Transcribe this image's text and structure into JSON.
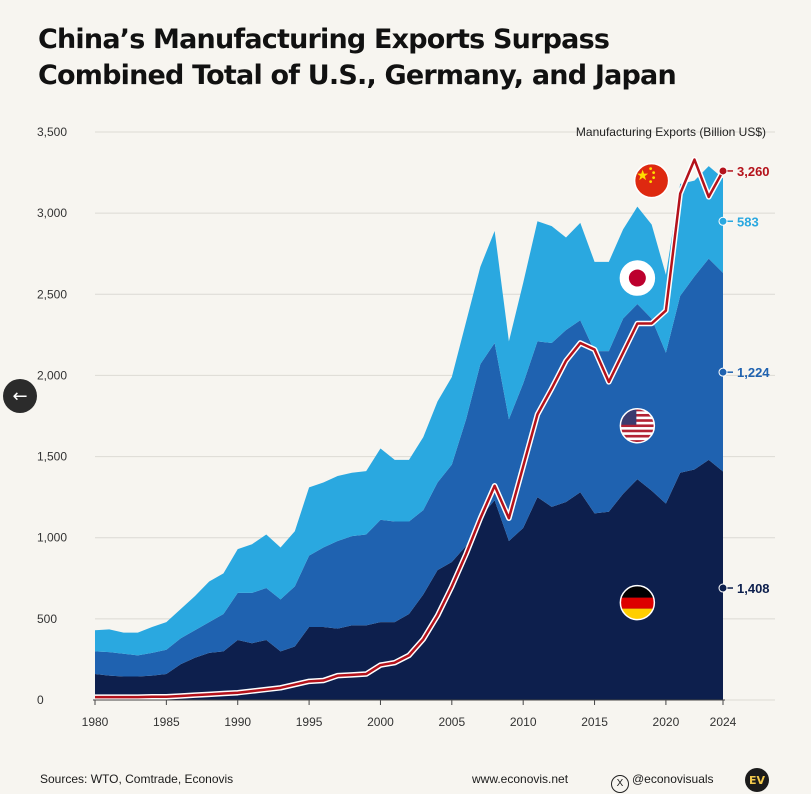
{
  "title_line1": "China’s Manufacturing Exports Surpass",
  "title_line2": "Combined Total of U.S., Germany, and Japan",
  "unit_label": "Manufacturing Exports (Billion US$)",
  "footer": {
    "sources": "Sources: WTO, Comtrade, Econovis",
    "website": "www.econovis.net",
    "handle": "@econovisuals",
    "logo_text": "EV"
  },
  "nav": {
    "back_icon": "arrow-left-icon",
    "back_glyph": "←"
  },
  "colors": {
    "germany": "#0d1f4d",
    "us": "#1f62b0",
    "japan": "#2aa8e0",
    "china": "#b4121b",
    "background": "#f7f5f0"
  },
  "chart_data": {
    "type": "area",
    "stacked": true,
    "x": [
      1980,
      1981,
      1982,
      1983,
      1984,
      1985,
      1986,
      1987,
      1988,
      1989,
      1990,
      1991,
      1992,
      1993,
      1994,
      1995,
      1996,
      1997,
      1998,
      1999,
      2000,
      2001,
      2002,
      2003,
      2004,
      2005,
      2006,
      2007,
      2008,
      2009,
      2010,
      2011,
      2012,
      2013,
      2014,
      2015,
      2016,
      2017,
      2018,
      2019,
      2020,
      2021,
      2022,
      2023,
      2024
    ],
    "xticks": [
      1980,
      1985,
      1990,
      1995,
      2000,
      2005,
      2010,
      2015,
      2020,
      2024
    ],
    "ylim": [
      0,
      3500
    ],
    "yticks": [
      0,
      500,
      1000,
      1500,
      2000,
      2500,
      3000,
      3500
    ],
    "ytick_labels": [
      "0",
      "500",
      "1,000",
      "1,500",
      "2,000",
      "2,500",
      "3,000",
      "3,500"
    ],
    "grid": true,
    "series": [
      {
        "key": "germany",
        "values": [
          160,
          150,
          145,
          145,
          150,
          160,
          220,
          260,
          290,
          300,
          370,
          350,
          370,
          300,
          330,
          450,
          450,
          440,
          460,
          460,
          480,
          480,
          530,
          650,
          800,
          850,
          950,
          1130,
          1230,
          980,
          1060,
          1250,
          1190,
          1220,
          1280,
          1150,
          1160,
          1270,
          1360,
          1290,
          1210,
          1400,
          1420,
          1480,
          1408
        ]
      },
      {
        "key": "us",
        "values": [
          140,
          145,
          140,
          130,
          140,
          150,
          160,
          170,
          190,
          230,
          290,
          310,
          320,
          320,
          370,
          440,
          490,
          540,
          550,
          560,
          630,
          620,
          570,
          520,
          540,
          600,
          780,
          940,
          970,
          750,
          890,
          960,
          1010,
          1060,
          1060,
          1000,
          990,
          1080,
          1080,
          1060,
          930,
          1090,
          1190,
          1240,
          1224
        ]
      },
      {
        "key": "japan",
        "values": [
          130,
          140,
          130,
          140,
          160,
          170,
          180,
          210,
          250,
          250,
          270,
          300,
          330,
          320,
          340,
          420,
          400,
          400,
          390,
          390,
          440,
          380,
          380,
          450,
          500,
          540,
          600,
          600,
          690,
          480,
          620,
          740,
          720,
          570,
          600,
          550,
          550,
          550,
          600,
          580,
          480,
          690,
          590,
          570,
          583
        ]
      }
    ],
    "line": {
      "key": "china",
      "values": [
        18,
        18,
        18,
        18,
        20,
        20,
        25,
        30,
        35,
        40,
        45,
        55,
        65,
        75,
        95,
        115,
        120,
        150,
        155,
        160,
        215,
        230,
        275,
        375,
        520,
        700,
        900,
        1120,
        1320,
        1120,
        1440,
        1760,
        1920,
        2090,
        2200,
        2160,
        1960,
        2140,
        2320,
        2320,
        2400,
        3120,
        3330,
        3100,
        3260
      ]
    },
    "end_labels": [
      {
        "key": "china",
        "label": "3,260",
        "y": 3260
      },
      {
        "key": "japan",
        "label": "583",
        "y": 2950
      },
      {
        "key": "us",
        "label": "1,224",
        "y": 2020
      },
      {
        "key": "germany",
        "label": "1,408",
        "y": 690
      }
    ],
    "flags": [
      {
        "key": "china",
        "icon": "china-flag-icon",
        "x": 2019,
        "y": 3200
      },
      {
        "key": "japan",
        "icon": "japan-flag-icon",
        "x": 2018,
        "y": 2600
      },
      {
        "key": "us",
        "icon": "us-flag-icon",
        "x": 2018,
        "y": 1690
      },
      {
        "key": "germany",
        "icon": "germany-flag-icon",
        "x": 2018,
        "y": 600
      }
    ]
  }
}
